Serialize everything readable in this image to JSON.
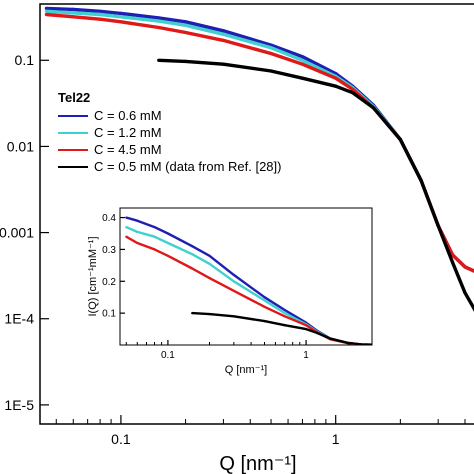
{
  "chart_data": [
    {
      "type": "line",
      "role": "main",
      "xscale": "log",
      "yscale": "log",
      "xlim": [
        0.042,
        4.5
      ],
      "ylim": [
        6e-06,
        0.45
      ],
      "xlabel": "Q [nm⁻¹]",
      "ylabel": "",
      "xticks": [
        0.1,
        1
      ],
      "xtick_labels": [
        "0.1",
        "1"
      ],
      "yticks": [
        0.1,
        0.01,
        0.001,
        0.0001,
        1e-05
      ],
      "ytick_labels": [
        "0.1",
        "0.01",
        "0.001",
        "1E-4",
        "1E-5"
      ],
      "legend": {
        "title": "Tel22",
        "placement": "upper-left",
        "entries": [
          "C = 0.6 mM",
          "C = 1.2 mM",
          "C = 4.5 mM",
          "C = 0.5 mM (data from Ref. [28])"
        ]
      },
      "series": [
        {
          "name": "C = 0.6 mM",
          "color": "#1f1fb4",
          "x": [
            0.045,
            0.06,
            0.08,
            0.1,
            0.15,
            0.2,
            0.3,
            0.5,
            0.7,
            1.0,
            1.2,
            1.5,
            2.0,
            2.5,
            3.0,
            3.5,
            4.0,
            4.5
          ],
          "y": [
            0.4,
            0.39,
            0.37,
            0.35,
            0.31,
            0.28,
            0.22,
            0.15,
            0.11,
            0.07,
            0.05,
            0.03,
            0.012,
            0.004,
            0.0012,
            0.00055,
            0.0004,
            0.00035
          ]
        },
        {
          "name": "C = 1.2 mM",
          "color": "#40d0d0",
          "x": [
            0.045,
            0.06,
            0.08,
            0.1,
            0.15,
            0.2,
            0.3,
            0.5,
            0.7,
            1.0,
            1.2,
            1.5,
            2.0,
            2.5,
            3.0,
            3.5,
            4.0,
            4.5
          ],
          "y": [
            0.37,
            0.355,
            0.34,
            0.32,
            0.285,
            0.255,
            0.2,
            0.14,
            0.1,
            0.065,
            0.048,
            0.029,
            0.012,
            0.004,
            0.0012,
            0.00055,
            0.0004,
            0.00035
          ]
        },
        {
          "name": "C = 4.5 mM",
          "color": "#e01818",
          "x": [
            0.045,
            0.06,
            0.08,
            0.1,
            0.15,
            0.2,
            0.3,
            0.5,
            0.7,
            1.0,
            1.2,
            1.5,
            2.0,
            2.5,
            3.0,
            3.5,
            4.0,
            4.5
          ],
          "y": [
            0.34,
            0.32,
            0.3,
            0.28,
            0.24,
            0.21,
            0.17,
            0.12,
            0.09,
            0.062,
            0.046,
            0.028,
            0.012,
            0.004,
            0.0012,
            0.00055,
            0.0004,
            0.00035
          ]
        },
        {
          "name": "C = 0.5 mM (data from Ref. [28])",
          "color": "#000000",
          "x": [
            0.15,
            0.2,
            0.3,
            0.5,
            0.7,
            1.0,
            1.2,
            1.5,
            2.0,
            2.5,
            3.0,
            3.5,
            4.0,
            4.5
          ],
          "y": [
            0.1,
            0.097,
            0.09,
            0.075,
            0.062,
            0.05,
            0.042,
            0.028,
            0.012,
            0.004,
            0.0012,
            0.00045,
            0.0002,
            0.00012
          ]
        }
      ]
    },
    {
      "type": "line",
      "role": "inset",
      "xscale": "log",
      "yscale": "linear",
      "xlim": [
        0.045,
        3.0
      ],
      "ylim": [
        0.0,
        0.43
      ],
      "xlabel": "Q [nm⁻¹]",
      "ylabel": "I(Q) [cm⁻¹mM⁻¹]",
      "xticks": [
        0.1,
        1
      ],
      "xtick_labels": [
        "0.1",
        "1"
      ],
      "yticks": [
        0.1,
        0.2,
        0.3,
        0.4
      ],
      "ytick_labels": [
        "0.1",
        "0.2",
        "0.3",
        "0.4"
      ],
      "series": [
        {
          "color": "#1f1fb4",
          "x": [
            0.05,
            0.06,
            0.08,
            0.1,
            0.15,
            0.2,
            0.3,
            0.5,
            0.7,
            1.0,
            1.2,
            1.5,
            2.0,
            2.5,
            3.0
          ],
          "y": [
            0.4,
            0.39,
            0.37,
            0.35,
            0.31,
            0.28,
            0.22,
            0.15,
            0.11,
            0.07,
            0.045,
            0.02,
            0.006,
            0.002,
            0.001
          ]
        },
        {
          "color": "#40d0d0",
          "x": [
            0.05,
            0.06,
            0.08,
            0.1,
            0.15,
            0.2,
            0.3,
            0.5,
            0.7,
            1.0,
            1.2,
            1.5,
            2.0,
            2.5,
            3.0
          ],
          "y": [
            0.37,
            0.355,
            0.34,
            0.32,
            0.285,
            0.255,
            0.2,
            0.14,
            0.1,
            0.065,
            0.042,
            0.019,
            0.006,
            0.002,
            0.001
          ]
        },
        {
          "color": "#e01818",
          "x": [
            0.05,
            0.06,
            0.08,
            0.1,
            0.15,
            0.2,
            0.3,
            0.5,
            0.7,
            1.0,
            1.2,
            1.5,
            2.0,
            2.5,
            3.0
          ],
          "y": [
            0.34,
            0.32,
            0.3,
            0.28,
            0.24,
            0.21,
            0.17,
            0.12,
            0.09,
            0.062,
            0.04,
            0.018,
            0.006,
            0.002,
            0.001
          ]
        },
        {
          "color": "#000000",
          "x": [
            0.15,
            0.2,
            0.3,
            0.5,
            0.7,
            1.0,
            1.2,
            1.5,
            2.0,
            2.5,
            3.0
          ],
          "y": [
            0.1,
            0.097,
            0.09,
            0.075,
            0.062,
            0.05,
            0.038,
            0.02,
            0.007,
            0.002,
            0.001
          ]
        }
      ]
    }
  ]
}
